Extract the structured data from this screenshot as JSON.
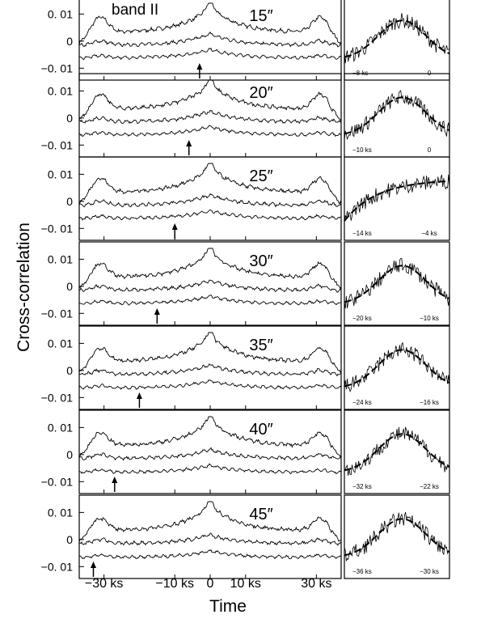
{
  "chart_data": {
    "type": "line",
    "band_label": "band II",
    "ylabel": "Cross-correlation",
    "xlabel": "Time",
    "x_tick_labels": [
      "−30 ks",
      "−10 ks",
      "0",
      "10 ks",
      "30 ks"
    ],
    "x_ticks": [
      -30,
      -10,
      0,
      10,
      30
    ],
    "xlim": [
      -37,
      37
    ],
    "ylim": [
      -0.012,
      0.014
    ],
    "y_ticks": [
      0.01,
      0,
      -0.01
    ],
    "y_tick_labels": [
      "0. 01",
      "0",
      "−0. 01"
    ],
    "panels": [
      {
        "angle_label": "15″",
        "arrow_x": -3,
        "zoom_left_label": "−8 ks",
        "zoom_right_label": "0",
        "zoom_shape": "peak"
      },
      {
        "angle_label": "20″",
        "arrow_x": -6,
        "zoom_left_label": "−10 ks",
        "zoom_right_label": "0",
        "zoom_shape": "peak"
      },
      {
        "angle_label": "25″",
        "arrow_x": -10,
        "zoom_left_label": "−14 ks",
        "zoom_right_label": "−4 ks",
        "zoom_shape": "rise"
      },
      {
        "angle_label": "30″",
        "arrow_x": -15,
        "zoom_left_label": "−20 ks",
        "zoom_right_label": "−10 ks",
        "zoom_shape": "peak"
      },
      {
        "angle_label": "35″",
        "arrow_x": -20,
        "zoom_left_label": "−24 ks",
        "zoom_right_label": "−16 ks",
        "zoom_shape": "peak"
      },
      {
        "angle_label": "40″",
        "arrow_x": -27,
        "zoom_left_label": "−32 ks",
        "zoom_right_label": "−22 ks",
        "zoom_shape": "peak"
      },
      {
        "angle_label": "45″",
        "arrow_x": -33,
        "zoom_left_label": "−36 ks",
        "zoom_right_label": "−30 ks",
        "zoom_shape": "peak"
      }
    ]
  }
}
